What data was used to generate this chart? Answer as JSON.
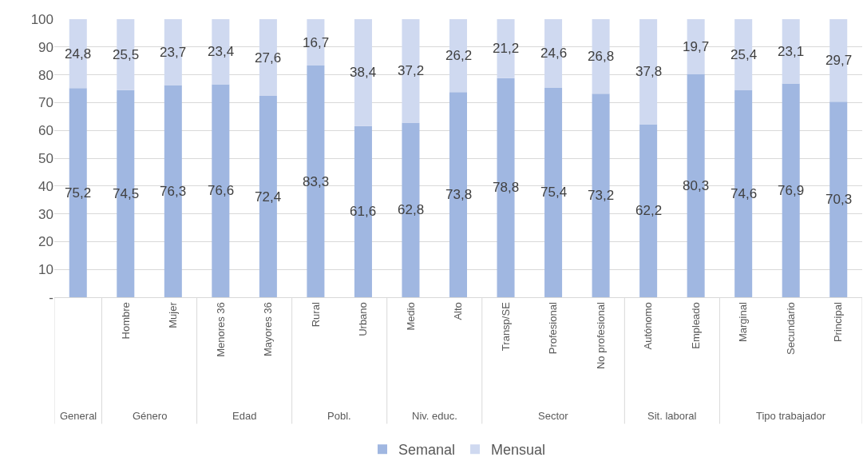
{
  "chart_data": {
    "type": "bar",
    "stacked": true,
    "categories": [
      null,
      "Hombre",
      "Mujer",
      "Menores 36",
      "Mayores 36",
      "Rural",
      "Urbano",
      "Medio",
      "Alto",
      "Transp/SE",
      "Profesional",
      "No profesional",
      "Autónomo",
      "Empleado",
      "Marginal",
      "Secundario",
      "Principal"
    ],
    "annotations": [
      "General",
      "Género",
      "Edad",
      "Pobl.",
      "Niv. educ.",
      "Sector",
      "Sit. laboral",
      "Tipo trabajador"
    ],
    "series": [
      {
        "name": "Semanal",
        "color": "#a0b7e1",
        "values": [
          75.2,
          74.5,
          76.3,
          76.6,
          72.4,
          83.3,
          61.6,
          62.8,
          73.8,
          78.8,
          75.4,
          73.2,
          62.2,
          80.3,
          74.6,
          76.9,
          70.3
        ],
        "value_labels": [
          "75,2",
          "74,5",
          "76,3",
          "76,6",
          "72,4",
          "83,3",
          "61,6",
          "62,8",
          "73,8",
          "78,8",
          "75,4",
          "73,2",
          "62,2",
          "80,3",
          "74,6",
          "76,9",
          "70,3"
        ]
      },
      {
        "name": "Mensual",
        "color": "#cfd9f0",
        "values": [
          24.8,
          25.5,
          23.7,
          23.4,
          27.6,
          16.7,
          38.4,
          37.2,
          26.2,
          21.2,
          24.6,
          26.8,
          37.8,
          19.7,
          25.4,
          23.1,
          29.7
        ],
        "value_labels": [
          "24,8",
          "25,5",
          "23,7",
          "23,4",
          "27,6",
          "16,7",
          "38,4",
          "37,2",
          "26,2",
          "21,2",
          "24,6",
          "26,8",
          "37,8",
          "19,7",
          "25,4",
          "23,1",
          "29,7"
        ]
      }
    ],
    "ylim": [
      0,
      100
    ],
    "yticks": [
      {
        "value": 0,
        "label": "-"
      },
      10,
      20,
      30,
      40,
      50,
      60,
      70,
      80,
      90,
      100
    ],
    "grid": "y",
    "legend": "bottom"
  }
}
